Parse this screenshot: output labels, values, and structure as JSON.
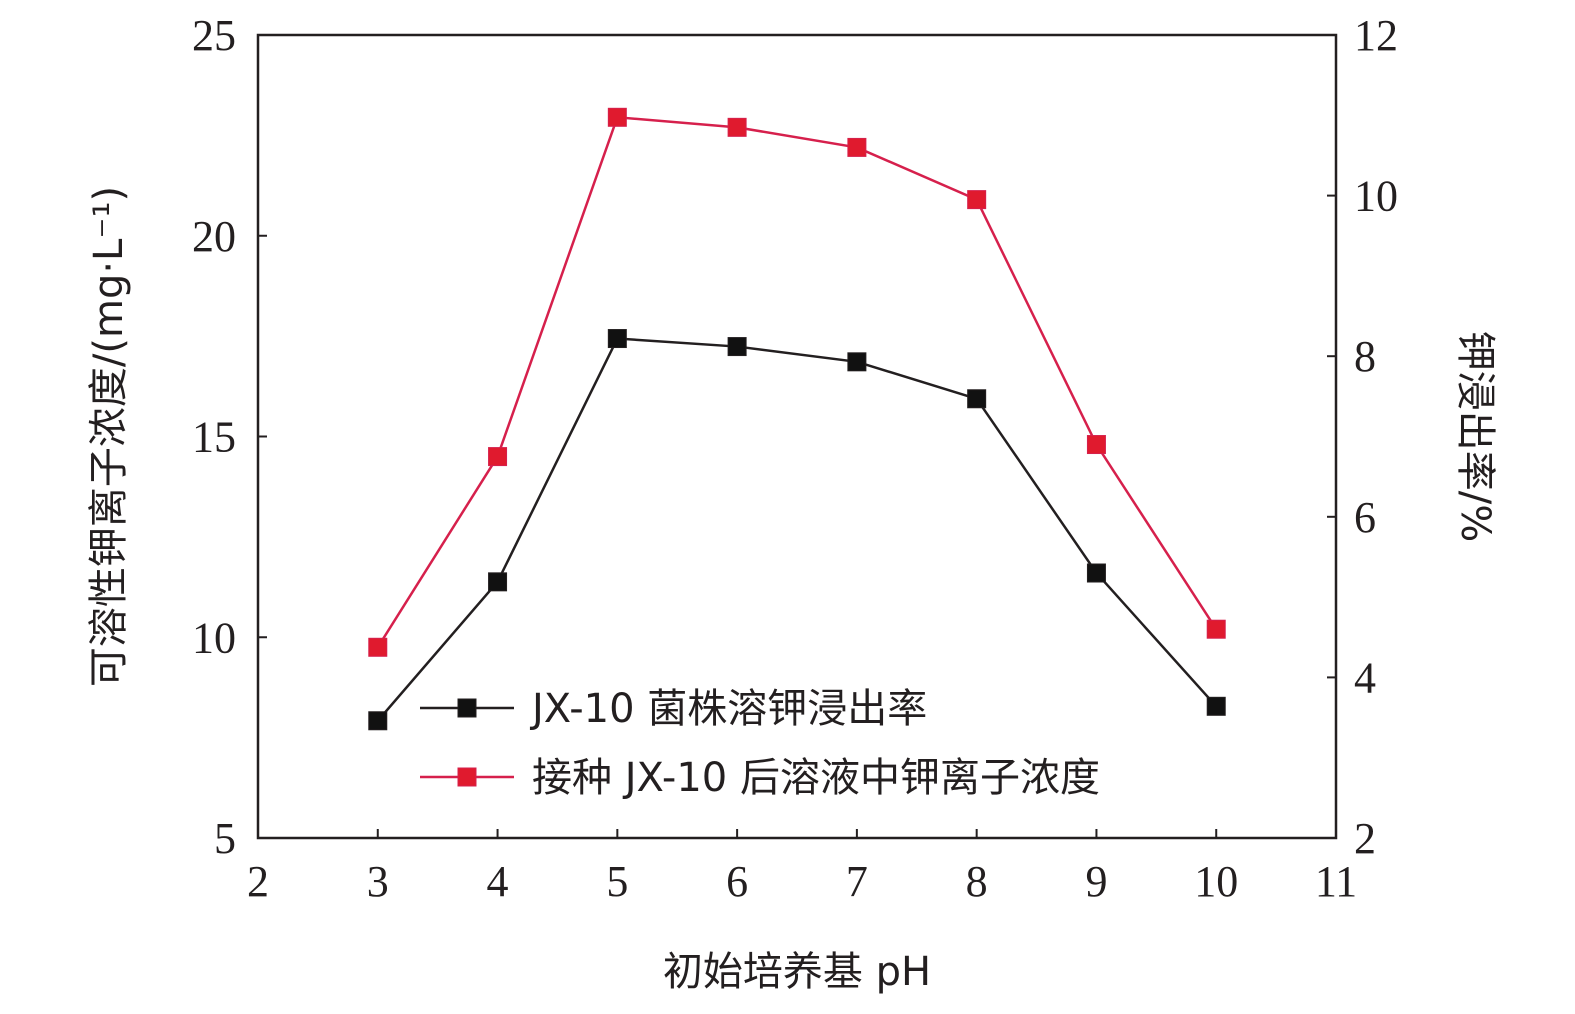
{
  "chart_data": {
    "type": "line",
    "x": [
      3,
      4,
      5,
      6,
      7,
      8,
      9,
      10
    ],
    "xlim": [
      2,
      11
    ],
    "x_ticks": [
      "2",
      "3",
      "4",
      "5",
      "6",
      "7",
      "8",
      "9",
      "10",
      "11"
    ],
    "xlabel": "初始培养基 pH",
    "ylabel_left": "可溶性钾离子浓度/(mg·L⁻¹)",
    "ylim_left": [
      5,
      25
    ],
    "y_ticks_left": [
      "5",
      "10",
      "15",
      "20",
      "25"
    ],
    "ylabel_right": "钾浸出率/%",
    "ylim_right": [
      2,
      12
    ],
    "y_ticks_right": [
      "2",
      "4",
      "6",
      "8",
      "10",
      "12"
    ],
    "grid": false,
    "legend_position": "bottom-center",
    "series": [
      {
        "name": "JX-10 菌株溶钾浸出率",
        "axis": "right",
        "color": "#231f20",
        "marker_color": "#111111",
        "values": [
          3.46,
          5.19,
          8.22,
          8.12,
          7.93,
          7.47,
          5.3,
          3.64
        ]
      },
      {
        "name": "接种 JX-10 后溶液中钾离子浓度",
        "axis": "left",
        "color": "#d6204c",
        "marker_color": "#e01a2e",
        "values": [
          9.75,
          14.5,
          22.95,
          22.7,
          22.2,
          20.9,
          14.8,
          10.2
        ]
      }
    ]
  }
}
